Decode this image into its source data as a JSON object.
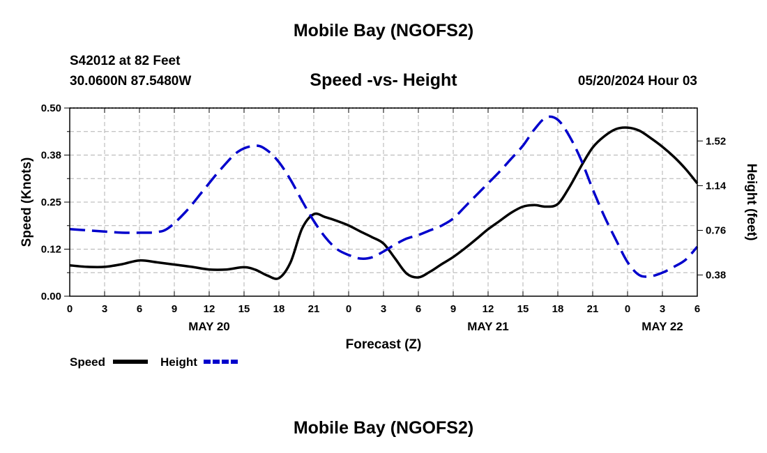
{
  "header": {
    "title": "Mobile Bay (NGOFS2)",
    "station": "S42012 at 82 Feet",
    "coordinates": "30.0600N  87.5480W",
    "subtitle": "Speed -vs- Height",
    "datetime": "05/20/2024 Hour 03"
  },
  "footer": {
    "title": "Mobile Bay (NGOFS2)"
  },
  "colors": {
    "speed": "#000000",
    "height": "#0000cc",
    "grid": "#b0b0b0"
  },
  "chart_data": {
    "type": "line",
    "title": "Speed -vs- Height",
    "xlabel": "Forecast (Z)",
    "ylabel_left": "Speed (Knots)",
    "ylabel_right": "Height (feet)",
    "x_unit": "hours from 00Z May 20",
    "xlim": [
      0,
      54
    ],
    "ylim_left": [
      0,
      0.5
    ],
    "ylim_right": [
      0.2,
      1.8
    ],
    "x_ticks": [
      0,
      3,
      6,
      9,
      12,
      15,
      18,
      21,
      24,
      27,
      30,
      33,
      36,
      39,
      42,
      45,
      48,
      51,
      54
    ],
    "x_tick_labels": [
      "0",
      "3",
      "6",
      "9",
      "12",
      "15",
      "18",
      "21",
      "0",
      "3",
      "6",
      "9",
      "12",
      "15",
      "18",
      "21",
      "0",
      "3",
      "6"
    ],
    "y_left_ticks": [
      0,
      0.125,
      0.25,
      0.375,
      0.5
    ],
    "y_left_tick_labels": [
      "0.00",
      "0.12",
      "0.25",
      "0.38",
      "0.50"
    ],
    "y_right_ticks": [
      0.38,
      0.76,
      1.14,
      1.52
    ],
    "y_right_tick_labels": [
      "0.38",
      "0.76",
      "1.14",
      "1.52"
    ],
    "date_labels": [
      {
        "label": "MAY 20",
        "x": 12
      },
      {
        "label": "MAY 21",
        "x": 36
      },
      {
        "label": "MAY 22",
        "x": 51
      }
    ],
    "grid": true,
    "legend_position": "bottom-left",
    "series": [
      {
        "name": "Speed",
        "axis": "left",
        "style": "solid",
        "x": [
          0,
          1.5,
          3,
          4.5,
          6,
          7.5,
          9,
          10.5,
          12,
          13.5,
          15,
          16,
          17,
          18,
          19,
          20,
          21,
          22,
          23,
          24,
          25,
          26,
          27,
          28,
          29,
          30,
          31,
          32,
          33,
          34,
          35,
          36,
          37,
          38,
          39,
          40,
          41,
          42,
          43,
          44,
          45,
          46,
          47,
          48,
          49,
          50,
          51,
          52,
          53,
          54
        ],
        "values": [
          0.082,
          0.078,
          0.078,
          0.085,
          0.095,
          0.09,
          0.084,
          0.078,
          0.071,
          0.071,
          0.077,
          0.07,
          0.055,
          0.048,
          0.09,
          0.18,
          0.218,
          0.21,
          0.2,
          0.188,
          0.172,
          0.157,
          0.14,
          0.1,
          0.06,
          0.05,
          0.065,
          0.085,
          0.104,
          0.127,
          0.152,
          0.178,
          0.2,
          0.222,
          0.238,
          0.242,
          0.238,
          0.245,
          0.29,
          0.345,
          0.395,
          0.425,
          0.444,
          0.448,
          0.44,
          0.42,
          0.397,
          0.37,
          0.338,
          0.3
        ]
      },
      {
        "name": "Height",
        "axis": "right",
        "style": "dashed",
        "x": [
          0,
          1.5,
          3,
          4.5,
          6,
          7.5,
          8.5,
          10,
          11.5,
          13,
          14.5,
          16,
          17,
          18,
          19,
          20,
          21,
          22,
          23,
          24,
          25,
          26,
          27,
          28,
          29,
          30,
          31,
          32,
          33,
          34,
          35,
          36,
          37,
          38,
          39,
          40,
          41,
          42,
          43,
          44,
          45,
          46,
          47,
          48,
          49,
          50,
          51,
          52,
          53,
          54
        ],
        "values": [
          0.77,
          0.76,
          0.75,
          0.74,
          0.74,
          0.745,
          0.78,
          0.92,
          1.1,
          1.28,
          1.43,
          1.48,
          1.44,
          1.34,
          1.19,
          1.01,
          0.84,
          0.7,
          0.6,
          0.55,
          0.52,
          0.53,
          0.58,
          0.64,
          0.69,
          0.72,
          0.76,
          0.8,
          0.86,
          0.96,
          1.06,
          1.16,
          1.26,
          1.37,
          1.48,
          1.62,
          1.72,
          1.7,
          1.56,
          1.36,
          1.11,
          0.88,
          0.68,
          0.49,
          0.38,
          0.37,
          0.4,
          0.45,
          0.51,
          0.62
        ]
      }
    ]
  }
}
